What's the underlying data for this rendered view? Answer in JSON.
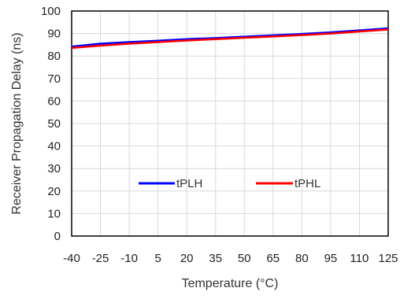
{
  "chart_data": {
    "type": "line",
    "title": "",
    "xlabel": "Temperature (°C)",
    "ylabel": "Receiver Propagation Delay (ns)",
    "x": [
      -40,
      -25,
      -10,
      5,
      20,
      35,
      50,
      65,
      80,
      95,
      110,
      125
    ],
    "categories": [
      "-40",
      "-25",
      "-10",
      "5",
      "20",
      "35",
      "50",
      "65",
      "80",
      "95",
      "110",
      "125"
    ],
    "xlim": [
      -40,
      125
    ],
    "ylim": [
      0,
      100
    ],
    "yticks": [
      0,
      10,
      20,
      30,
      40,
      50,
      60,
      70,
      80,
      90,
      100
    ],
    "grid": true,
    "legend_position": "center",
    "series": [
      {
        "name": "tPLH",
        "color": "#0000ff",
        "values": [
          84.2,
          85.5,
          86.2,
          86.8,
          87.5,
          88.0,
          88.6,
          89.2,
          89.8,
          90.5,
          91.4,
          92.3
        ]
      },
      {
        "name": "tPHL",
        "color": "#ff0000",
        "values": [
          83.6,
          84.6,
          85.5,
          86.2,
          86.9,
          87.5,
          88.1,
          88.7,
          89.3,
          90.0,
          90.9,
          91.8
        ]
      }
    ]
  }
}
